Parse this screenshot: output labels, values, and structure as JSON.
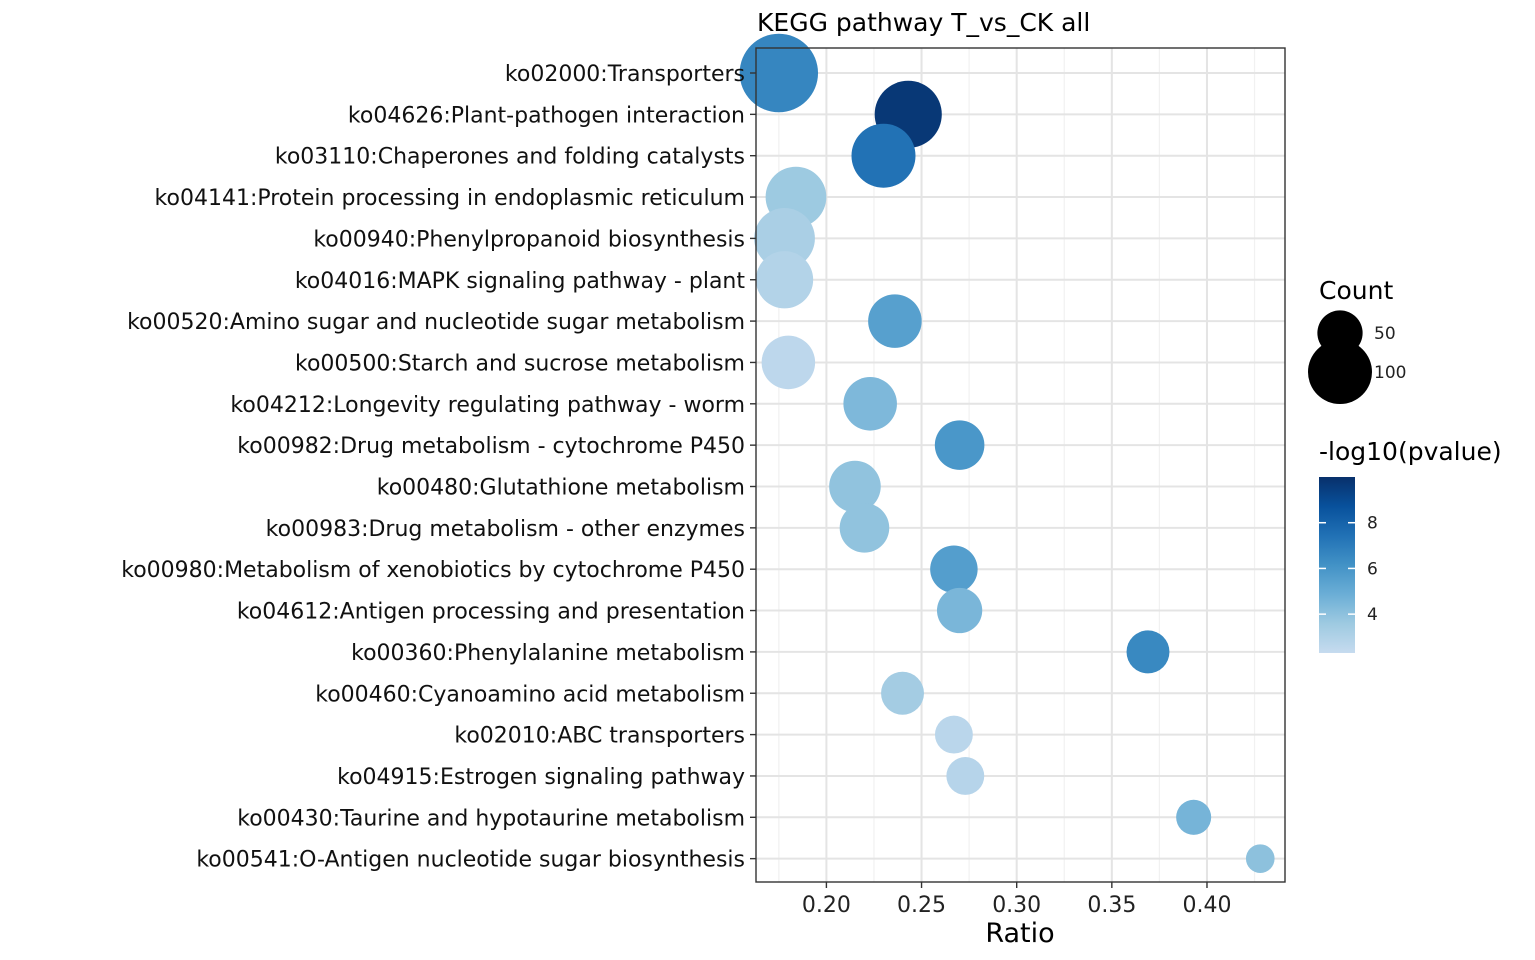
{
  "chart_data": {
    "type": "scatter",
    "title": "KEGG pathway T_vs_CK all",
    "xlabel": "Ratio",
    "ylabel": "",
    "xlim": [
      0.163,
      0.441
    ],
    "xticks": [
      0.2,
      0.25,
      0.3,
      0.35,
      0.4
    ],
    "xtick_labels": [
      "0.20",
      "0.25",
      "0.30",
      "0.35",
      "0.40"
    ],
    "grid": true,
    "pathways": [
      {
        "label": "ko02000:Transporters",
        "ratio": 0.175,
        "count": 150,
        "neglog10p": 6.6
      },
      {
        "label": "ko04626:Plant-pathogen interaction",
        "ratio": 0.243,
        "count": 110,
        "neglog10p": 9.7
      },
      {
        "label": "ko03110:Chaperones and folding catalysts",
        "ratio": 0.23,
        "count": 100,
        "neglog10p": 7.4
      },
      {
        "label": "ko04141:Protein processing in endoplasmic reticulum",
        "ratio": 0.184,
        "count": 90,
        "neglog10p": 3.6
      },
      {
        "label": "ko00940:Phenylpropanoid biosynthesis",
        "ratio": 0.178,
        "count": 90,
        "neglog10p": 3.2
      },
      {
        "label": "ko04016:MAPK signaling pathway - plant",
        "ratio": 0.178,
        "count": 80,
        "neglog10p": 2.9
      },
      {
        "label": "ko00520:Amino sugar and nucleotide sugar metabolism",
        "ratio": 0.236,
        "count": 70,
        "neglog10p": 5.5
      },
      {
        "label": "ko00500:Starch and sucrose metabolism",
        "ratio": 0.18,
        "count": 70,
        "neglog10p": 2.6
      },
      {
        "label": "ko04212:Longevity regulating pathway - worm",
        "ratio": 0.223,
        "count": 70,
        "neglog10p": 4.4
      },
      {
        "label": "ko00982:Drug metabolism - cytochrome P450",
        "ratio": 0.27,
        "count": 60,
        "neglog10p": 5.9
      },
      {
        "label": "ko00480:Glutathione metabolism",
        "ratio": 0.215,
        "count": 65,
        "neglog10p": 3.9
      },
      {
        "label": "ko00983:Drug metabolism - other enzymes",
        "ratio": 0.22,
        "count": 60,
        "neglog10p": 3.9
      },
      {
        "label": "ko00980:Metabolism of xenobiotics by cytochrome P450",
        "ratio": 0.267,
        "count": 55,
        "neglog10p": 5.6
      },
      {
        "label": "ko04612:Antigen processing and presentation",
        "ratio": 0.27,
        "count": 50,
        "neglog10p": 4.5
      },
      {
        "label": "ko00360:Phenylalanine metabolism",
        "ratio": 0.369,
        "count": 45,
        "neglog10p": 6.5
      },
      {
        "label": "ko00460:Cyanoamino acid metabolism",
        "ratio": 0.24,
        "count": 45,
        "neglog10p": 3.4
      },
      {
        "label": "ko02010:ABC transporters",
        "ratio": 0.267,
        "count": 35,
        "neglog10p": 2.7
      },
      {
        "label": "ko04915:Estrogen signaling pathway",
        "ratio": 0.273,
        "count": 35,
        "neglog10p": 2.8
      },
      {
        "label": "ko00430:Taurine and hypotaurine metabolism",
        "ratio": 0.393,
        "count": 30,
        "neglog10p": 4.6
      },
      {
        "label": "ko00541:O-Antigen nucleotide sugar biosynthesis",
        "ratio": 0.428,
        "count": 20,
        "neglog10p": 4.0
      }
    ],
    "size_legend": {
      "title": "Count",
      "entries": [
        {
          "label": "50",
          "value": 50
        },
        {
          "label": "100",
          "value": 100
        }
      ]
    },
    "color_legend": {
      "title": "-log10(pvalue)",
      "range": [
        2.3,
        10.0
      ],
      "ticks": [
        {
          "label": "4",
          "value": 4
        },
        {
          "label": "6",
          "value": 6
        },
        {
          "label": "8",
          "value": 8
        }
      ],
      "colors": [
        "#c6dbef",
        "#9ecae1",
        "#6baed6",
        "#4292c6",
        "#2171b5",
        "#08519c",
        "#08306b"
      ]
    }
  }
}
